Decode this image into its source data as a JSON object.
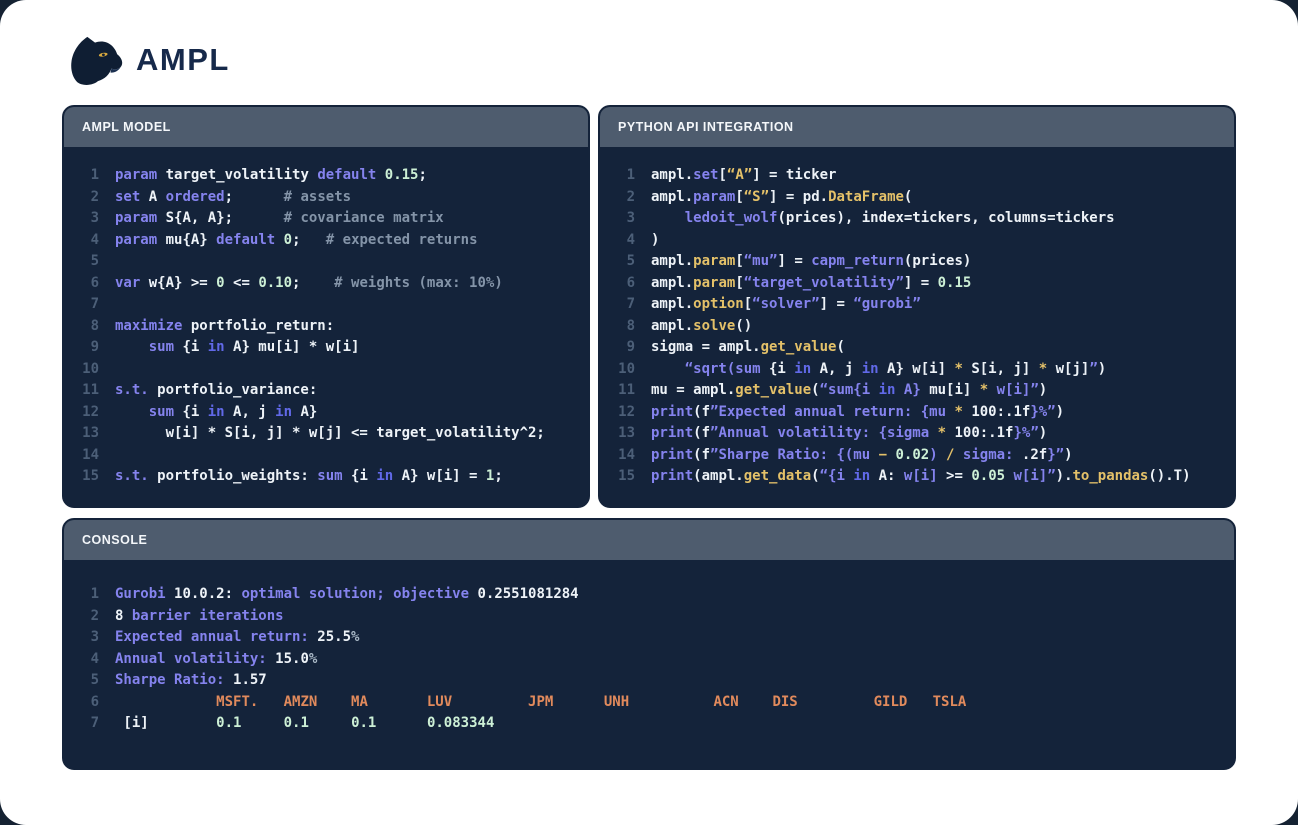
{
  "page": {
    "logo_text": "AMPL"
  },
  "colors": {
    "page_background": "#ffffff",
    "outer_background": "#152232",
    "panel_body": "#14233a",
    "panel_header": "#4e5c6e",
    "keyword_purple": "#8583ee",
    "keyword_blue": "#6169e8",
    "gold": "#e4c169",
    "number_green": "#cdf0d6",
    "ticker_orange": "#e18a5c",
    "comment_gray": "#8494a8",
    "text_white": "#eef3f8",
    "line_number": "#4c5f78",
    "logo_navy": "#16294a"
  },
  "panels": [
    {
      "title": "AMPL MODEL",
      "lines": [
        [
          [
            "k",
            "param"
          ],
          [
            "w",
            " target_volatility "
          ],
          [
            "k",
            "default"
          ],
          [
            "w",
            " "
          ],
          [
            "g",
            "0.15"
          ],
          [
            "w",
            ";"
          ]
        ],
        [
          [
            "k",
            "set"
          ],
          [
            "w",
            " A "
          ],
          [
            "k",
            "ordered"
          ],
          [
            "w",
            ";"
          ],
          [
            "c",
            "      # assets"
          ]
        ],
        [
          [
            "k",
            "param"
          ],
          [
            "w",
            " S{A, A};"
          ],
          [
            "c",
            "      # covariance matrix"
          ]
        ],
        [
          [
            "k",
            "param"
          ],
          [
            "w",
            " mu{A} "
          ],
          [
            "k",
            "default"
          ],
          [
            "w",
            " "
          ],
          [
            "g",
            "0"
          ],
          [
            "w",
            ";"
          ],
          [
            "c",
            "   # expected returns"
          ]
        ],
        [],
        [
          [
            "k",
            "var"
          ],
          [
            "w",
            " w{A} >= "
          ],
          [
            "g",
            "0"
          ],
          [
            "w",
            " <= "
          ],
          [
            "g",
            "0.10"
          ],
          [
            "w",
            ";"
          ],
          [
            "c",
            "    # weights (max: 10%)"
          ]
        ],
        [],
        [
          [
            "k",
            "maximize"
          ],
          [
            "w",
            " portfolio_return:"
          ]
        ],
        [
          [
            "w",
            "    "
          ],
          [
            "k",
            "sum"
          ],
          [
            "w",
            " {i "
          ],
          [
            "b",
            "in"
          ],
          [
            "w",
            " A} mu[i] * w[i]"
          ]
        ],
        [],
        [
          [
            "k",
            "s.t."
          ],
          [
            "w",
            " portfolio_variance:"
          ]
        ],
        [
          [
            "w",
            "    "
          ],
          [
            "k",
            "sum"
          ],
          [
            "w",
            " {i "
          ],
          [
            "b",
            "in"
          ],
          [
            "w",
            " A, j "
          ],
          [
            "b",
            "in"
          ],
          [
            "w",
            " A}"
          ]
        ],
        [
          [
            "w",
            "      w[i] * S[i, j] * w[j] <= target_volatility^2;"
          ]
        ],
        [],
        [
          [
            "k",
            "s.t."
          ],
          [
            "w",
            " portfolio_weights: "
          ],
          [
            "k",
            "sum"
          ],
          [
            "w",
            " {i "
          ],
          [
            "b",
            "in"
          ],
          [
            "w",
            " A} w[i] = "
          ],
          [
            "g",
            "1"
          ],
          [
            "w",
            ";"
          ]
        ]
      ]
    },
    {
      "title": "PYTHON API INTEGRATION",
      "lines": [
        [
          [
            "w",
            "ampl."
          ],
          [
            "k",
            "set"
          ],
          [
            "w",
            "["
          ],
          [
            "y",
            "“A”"
          ],
          [
            "w",
            "] = ticker"
          ]
        ],
        [
          [
            "w",
            "ampl."
          ],
          [
            "k",
            "param"
          ],
          [
            "w",
            "["
          ],
          [
            "y",
            "“S”"
          ],
          [
            "w",
            "] = pd."
          ],
          [
            "y",
            "DataFrame"
          ],
          [
            "w",
            "("
          ]
        ],
        [
          [
            "w",
            "    "
          ],
          [
            "k",
            "ledoit_wolf"
          ],
          [
            "w",
            "(prices), index=tickers, columns=tickers"
          ]
        ],
        [
          [
            "w",
            ")"
          ]
        ],
        [
          [
            "w",
            "ampl."
          ],
          [
            "y",
            "param"
          ],
          [
            "w",
            "["
          ],
          [
            "k",
            "“mu”"
          ],
          [
            "w",
            "] = "
          ],
          [
            "k",
            "capm_return"
          ],
          [
            "w",
            "(prices)"
          ]
        ],
        [
          [
            "w",
            "ampl."
          ],
          [
            "y",
            "param"
          ],
          [
            "w",
            "["
          ],
          [
            "k",
            "“target_volatility”"
          ],
          [
            "w",
            "] = "
          ],
          [
            "g",
            "0.15"
          ]
        ],
        [
          [
            "w",
            "ampl."
          ],
          [
            "y",
            "option"
          ],
          [
            "w",
            "["
          ],
          [
            "k",
            "“solver”"
          ],
          [
            "w",
            "] = "
          ],
          [
            "k",
            "“gurobi”"
          ]
        ],
        [
          [
            "w",
            "ampl."
          ],
          [
            "y",
            "solve"
          ],
          [
            "w",
            "()"
          ]
        ],
        [
          [
            "w",
            "sigma = ampl."
          ],
          [
            "y",
            "get_value"
          ],
          [
            "w",
            "("
          ]
        ],
        [
          [
            "w",
            "    "
          ],
          [
            "k",
            "“sqrt(sum"
          ],
          [
            "w",
            " {i "
          ],
          [
            "b",
            "in"
          ],
          [
            "w",
            " A, j "
          ],
          [
            "b",
            "in"
          ],
          [
            "w",
            " A} w[i] "
          ],
          [
            "y",
            "*"
          ],
          [
            "w",
            " S[i, j] "
          ],
          [
            "y",
            "*"
          ],
          [
            "w",
            " w[j]"
          ],
          [
            "k",
            "”"
          ],
          [
            "w",
            ")"
          ]
        ],
        [
          [
            "w",
            "mu = ampl."
          ],
          [
            "y",
            "get_value"
          ],
          [
            "w",
            "("
          ],
          [
            "k",
            "“sum{i "
          ],
          [
            "b",
            "in"
          ],
          [
            "k",
            " A}"
          ],
          [
            "w",
            " mu[i] "
          ],
          [
            "y",
            "*"
          ],
          [
            "k",
            " w[i]”"
          ],
          [
            "w",
            ")"
          ]
        ],
        [
          [
            "k",
            "print"
          ],
          [
            "w",
            "(f"
          ],
          [
            "k",
            "”Expected annual return: {mu "
          ],
          [
            "y",
            "*"
          ],
          [
            "w",
            " 100:.1f"
          ],
          [
            "k",
            "}%”"
          ],
          [
            "w",
            ")"
          ]
        ],
        [
          [
            "k",
            "print"
          ],
          [
            "w",
            "(f"
          ],
          [
            "k",
            "”Annual volatility: {sigma "
          ],
          [
            "y",
            "*"
          ],
          [
            "w",
            " 100:.1f"
          ],
          [
            "k",
            "}%”"
          ],
          [
            "w",
            ")"
          ]
        ],
        [
          [
            "k",
            "print"
          ],
          [
            "w",
            "(f"
          ],
          [
            "k",
            "”Sharpe Ratio: {(mu "
          ],
          [
            "y",
            "−"
          ],
          [
            "g",
            " 0.02"
          ],
          [
            "k",
            ") "
          ],
          [
            "y",
            "/"
          ],
          [
            "k",
            " sigma: "
          ],
          [
            "w",
            ".2f"
          ],
          [
            "k",
            "}”"
          ],
          [
            "w",
            ")"
          ]
        ],
        [
          [
            "k",
            "print"
          ],
          [
            "w",
            "(ampl."
          ],
          [
            "y",
            "get_data"
          ],
          [
            "w",
            "("
          ],
          [
            "k",
            "“{i "
          ],
          [
            "b",
            "in"
          ],
          [
            "w",
            " A: "
          ],
          [
            "k",
            "w[i]"
          ],
          [
            "w",
            " >= "
          ],
          [
            "g",
            "0.05"
          ],
          [
            "k",
            " w[i]”"
          ],
          [
            "w",
            ")."
          ],
          [
            "y",
            "to_pandas"
          ],
          [
            "w",
            "().T)"
          ]
        ]
      ]
    },
    {
      "title": "CONSOLE",
      "lines": [
        [
          [
            "k",
            "Gurobi "
          ],
          [
            "w",
            "10.0.2: "
          ],
          [
            "k",
            "optimal solution; objective "
          ],
          [
            "w",
            "0.2551081284"
          ]
        ],
        [
          [
            "w",
            "8 "
          ],
          [
            "k",
            "barrier iterations"
          ]
        ],
        [
          [
            "k",
            "Expected annual return: "
          ],
          [
            "w",
            "25.5"
          ],
          [
            "m",
            "%"
          ]
        ],
        [
          [
            "k",
            "Annual volatility: "
          ],
          [
            "w",
            "15.0"
          ],
          [
            "m",
            "%"
          ]
        ],
        [
          [
            "k",
            "Sharpe Ratio: "
          ],
          [
            "w",
            "1.57"
          ]
        ],
        [
          [
            "w",
            "            "
          ],
          [
            "o",
            "MSFT.   AMZN    MA       LUV         JPM      UNH          ACN    DIS         GILD   TSLA"
          ]
        ],
        [
          [
            "w",
            " [i]        "
          ],
          [
            "g",
            "0.1"
          ],
          [
            "w",
            "     "
          ],
          [
            "g",
            "0.1"
          ],
          [
            "w",
            "     "
          ],
          [
            "g",
            "0.1"
          ],
          [
            "w",
            "      "
          ],
          [
            "g",
            "0.083344"
          ]
        ]
      ]
    }
  ]
}
